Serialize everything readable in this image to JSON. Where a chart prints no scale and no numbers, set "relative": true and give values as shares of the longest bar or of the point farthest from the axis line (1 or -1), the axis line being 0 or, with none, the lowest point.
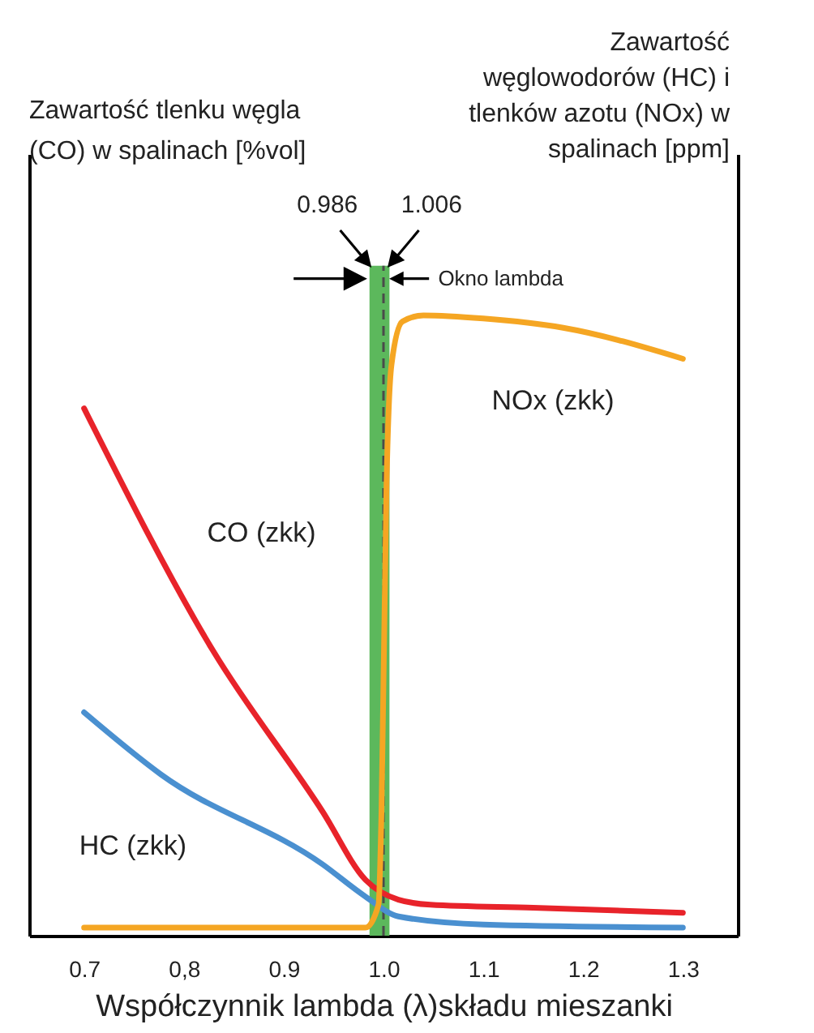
{
  "chart_data": {
    "type": "line",
    "relative": true,
    "xlabel": "Współczynnik lambda (λ)składu mieszanki",
    "xlim": [
      0.645,
      1.355
    ],
    "xticks": [
      0.7,
      {
        "value": 0.8,
        "label": "0,8"
      },
      0.9,
      {
        "value": 1,
        "label": "1.0"
      },
      1.1,
      1.2,
      1.3
    ],
    "series": [
      {
        "name": "CO (zkk)",
        "color": "#e8232a",
        "x": [
          0.7,
          0.829,
          0.939,
          0.982,
          1.015,
          1.047,
          1.15,
          1.3
        ],
        "values": [
          0.85,
          0.46,
          0.2,
          0.09,
          0.058,
          0.05,
          0.045,
          0.037
        ]
      },
      {
        "name": "HC (zkk)",
        "color": "#4a90d0",
        "axis": "y2",
        "x": [
          0.7,
          0.777,
          0.939,
          0.982,
          1.015,
          1.1,
          1.3
        ],
        "values": [
          0.36,
          0.26,
          0.115,
          0.063,
          0.031,
          0.018,
          0.013
        ]
      },
      {
        "name": "NOx (zkk)",
        "color": "#f5a623",
        "axis": "y2",
        "x": [
          0.7,
          0.982,
          0.995,
          0.998,
          1.003,
          1.008,
          1.019,
          1.04,
          1.1,
          1.18,
          1.3
        ],
        "values": [
          0.013,
          0.013,
          0.05,
          0.2,
          0.725,
          0.92,
          0.99,
          1.0,
          0.995,
          0.98,
          0.93
        ]
      }
    ],
    "bands": [
      {
        "axis": "x",
        "from": 0.986,
        "to": 1.006,
        "label": "Okno lambda",
        "color": "#5cb85c"
      }
    ],
    "ref_lines": [
      {
        "axis": "x",
        "value": 1,
        "color": "#4a4a4a",
        "line_style": "dashed"
      }
    ],
    "annotations": [
      "0.986",
      "1.006",
      "Zawartość tlenku węgla\n(CO) w spalinach [%vol]",
      "Zawartość\nwęglowodorów (HC) i\ntlenków azotu (NOx) w\nspalinach [ppm]"
    ]
  }
}
